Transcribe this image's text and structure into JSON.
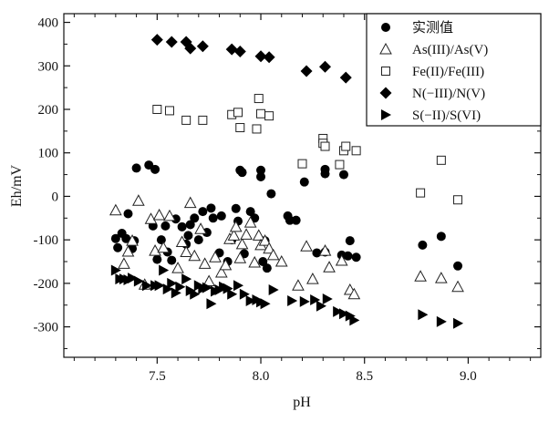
{
  "chart_data": {
    "type": "scatter",
    "xlabel": "pH",
    "ylabel": "Eh/mV",
    "xlim": [
      7.05,
      9.35
    ],
    "ylim": [
      -370,
      420
    ],
    "xticks": [
      "7.5",
      "8.0",
      "8.5",
      "9.0"
    ],
    "xtick_values": [
      7.5,
      8.0,
      8.5,
      9.0
    ],
    "yticks": [
      "400",
      "300",
      "200",
      "100",
      "0",
      "-100",
      "-200",
      "-300"
    ],
    "ytick_values": [
      400,
      300,
      200,
      100,
      0,
      -100,
      -200,
      -300
    ],
    "grid": false,
    "legend_position": "top-right",
    "series": [
      {
        "name": "实测值",
        "marker": "circle-filled",
        "points": [
          [
            7.3,
            -97
          ],
          [
            7.31,
            -118
          ],
          [
            7.33,
            -85
          ],
          [
            7.35,
            -97
          ],
          [
            7.36,
            -40
          ],
          [
            7.38,
            -120
          ],
          [
            7.39,
            -102
          ],
          [
            7.4,
            65
          ],
          [
            7.46,
            72
          ],
          [
            7.48,
            -68
          ],
          [
            7.49,
            62
          ],
          [
            7.5,
            -145
          ],
          [
            7.52,
            -100
          ],
          [
            7.54,
            -68
          ],
          [
            7.55,
            -128
          ],
          [
            7.57,
            -147
          ],
          [
            7.59,
            -52
          ],
          [
            7.62,
            -70
          ],
          [
            7.64,
            -110
          ],
          [
            7.65,
            -90
          ],
          [
            7.66,
            -65
          ],
          [
            7.68,
            -50
          ],
          [
            7.7,
            -100
          ],
          [
            7.72,
            -35
          ],
          [
            7.74,
            -83
          ],
          [
            7.76,
            -27
          ],
          [
            7.77,
            -50
          ],
          [
            7.8,
            -130
          ],
          [
            7.81,
            -45
          ],
          [
            7.84,
            -150
          ],
          [
            7.86,
            -100
          ],
          [
            7.88,
            -28
          ],
          [
            7.89,
            -57
          ],
          [
            7.9,
            60
          ],
          [
            7.91,
            55
          ],
          [
            7.92,
            -132
          ],
          [
            7.95,
            -35
          ],
          [
            7.97,
            -50
          ],
          [
            8.0,
            60
          ],
          [
            8.0,
            45
          ],
          [
            8.01,
            -150
          ],
          [
            8.02,
            -102
          ],
          [
            8.03,
            -165
          ],
          [
            8.05,
            6
          ],
          [
            8.13,
            -45
          ],
          [
            8.14,
            -55
          ],
          [
            8.17,
            -55
          ],
          [
            8.21,
            33
          ],
          [
            8.27,
            -130
          ],
          [
            8.31,
            62
          ],
          [
            8.31,
            52
          ],
          [
            8.31,
            -128
          ],
          [
            8.39,
            -135
          ],
          [
            8.4,
            50
          ],
          [
            8.42,
            -137
          ],
          [
            8.43,
            -102
          ],
          [
            8.46,
            -140
          ],
          [
            8.78,
            -112
          ],
          [
            8.87,
            -92
          ],
          [
            8.95,
            -160
          ]
        ]
      },
      {
        "name": "As(III)/As(V)",
        "marker": "triangle-open",
        "points": [
          [
            7.3,
            -32
          ],
          [
            7.34,
            -155
          ],
          [
            7.36,
            -127
          ],
          [
            7.38,
            -102
          ],
          [
            7.41,
            -10
          ],
          [
            7.44,
            -203
          ],
          [
            7.47,
            -52
          ],
          [
            7.49,
            -125
          ],
          [
            7.51,
            -43
          ],
          [
            7.53,
            -118
          ],
          [
            7.56,
            -45
          ],
          [
            7.6,
            -165
          ],
          [
            7.62,
            -105
          ],
          [
            7.64,
            -128
          ],
          [
            7.66,
            -15
          ],
          [
            7.68,
            -137
          ],
          [
            7.71,
            -75
          ],
          [
            7.73,
            -155
          ],
          [
            7.75,
            -195
          ],
          [
            7.78,
            -140
          ],
          [
            7.81,
            -175
          ],
          [
            7.83,
            -158
          ],
          [
            7.85,
            -98
          ],
          [
            7.87,
            -90
          ],
          [
            7.88,
            -70
          ],
          [
            7.9,
            -142
          ],
          [
            7.91,
            -110
          ],
          [
            7.93,
            -88
          ],
          [
            7.95,
            -60
          ],
          [
            7.97,
            -152
          ],
          [
            7.99,
            -90
          ],
          [
            8.0,
            -112
          ],
          [
            8.02,
            -102
          ],
          [
            8.04,
            -120
          ],
          [
            8.06,
            -135
          ],
          [
            8.1,
            -150
          ],
          [
            8.18,
            -205
          ],
          [
            8.22,
            -115
          ],
          [
            8.25,
            -190
          ],
          [
            8.31,
            -125
          ],
          [
            8.33,
            -163
          ],
          [
            8.39,
            -148
          ],
          [
            8.43,
            -215
          ],
          [
            8.45,
            -225
          ],
          [
            8.77,
            -184
          ],
          [
            8.87,
            -188
          ],
          [
            8.95,
            -208
          ]
        ]
      },
      {
        "name": "Fe(II)/Fe(III)",
        "marker": "square-open",
        "points": [
          [
            7.5,
            200
          ],
          [
            7.56,
            197
          ],
          [
            7.64,
            175
          ],
          [
            7.72,
            175
          ],
          [
            7.86,
            188
          ],
          [
            7.89,
            193
          ],
          [
            7.9,
            158
          ],
          [
            7.98,
            155
          ],
          [
            7.99,
            225
          ],
          [
            8.0,
            190
          ],
          [
            8.04,
            185
          ],
          [
            8.2,
            75
          ],
          [
            8.3,
            133
          ],
          [
            8.3,
            122
          ],
          [
            8.31,
            115
          ],
          [
            8.38,
            73
          ],
          [
            8.4,
            105
          ],
          [
            8.41,
            115
          ],
          [
            8.46,
            105
          ],
          [
            8.77,
            8
          ],
          [
            8.87,
            83
          ],
          [
            8.95,
            -8
          ]
        ]
      },
      {
        "name": "N(−III)/N(V)",
        "marker": "diamond-filled",
        "points": [
          [
            7.5,
            360
          ],
          [
            7.57,
            355
          ],
          [
            7.64,
            355
          ],
          [
            7.66,
            340
          ],
          [
            7.72,
            345
          ],
          [
            7.86,
            338
          ],
          [
            7.9,
            333
          ],
          [
            8.0,
            322
          ],
          [
            8.04,
            320
          ],
          [
            8.22,
            288
          ],
          [
            8.31,
            298
          ],
          [
            8.41,
            273
          ]
        ]
      },
      {
        "name": "S(−II)/S(VI)",
        "marker": "triangle-right-filled",
        "points": [
          [
            7.3,
            -170
          ],
          [
            7.32,
            -190
          ],
          [
            7.34,
            -190
          ],
          [
            7.36,
            -192
          ],
          [
            7.38,
            -188
          ],
          [
            7.41,
            -195
          ],
          [
            7.45,
            -205
          ],
          [
            7.49,
            -205
          ],
          [
            7.51,
            -205
          ],
          [
            7.53,
            -170
          ],
          [
            7.55,
            -213
          ],
          [
            7.57,
            -200
          ],
          [
            7.59,
            -222
          ],
          [
            7.61,
            -208
          ],
          [
            7.64,
            -190
          ],
          [
            7.66,
            -217
          ],
          [
            7.68,
            -225
          ],
          [
            7.7,
            -205
          ],
          [
            7.72,
            -212
          ],
          [
            7.74,
            -210
          ],
          [
            7.76,
            -247
          ],
          [
            7.78,
            -218
          ],
          [
            7.8,
            -215
          ],
          [
            7.82,
            -208
          ],
          [
            7.84,
            -212
          ],
          [
            7.86,
            -225
          ],
          [
            7.89,
            -205
          ],
          [
            7.92,
            -225
          ],
          [
            7.95,
            -240
          ],
          [
            7.98,
            -238
          ],
          [
            8.0,
            -243
          ],
          [
            8.02,
            -247
          ],
          [
            8.06,
            -215
          ],
          [
            8.15,
            -240
          ],
          [
            8.21,
            -242
          ],
          [
            8.26,
            -238
          ],
          [
            8.29,
            -252
          ],
          [
            8.32,
            -236
          ],
          [
            8.37,
            -265
          ],
          [
            8.4,
            -270
          ],
          [
            8.43,
            -275
          ],
          [
            8.45,
            -285
          ],
          [
            8.78,
            -272
          ],
          [
            8.87,
            -288
          ],
          [
            8.95,
            -292
          ]
        ]
      }
    ]
  }
}
